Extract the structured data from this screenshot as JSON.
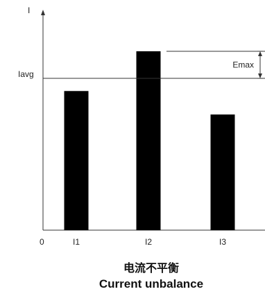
{
  "chart_data": {
    "type": "bar",
    "categories": [
      "I1",
      "I2",
      "I3"
    ],
    "values": [
      7.7,
      9.9,
      6.4
    ],
    "ylabel": "I",
    "origin_label": "0",
    "ylim": [
      0,
      12.2
    ],
    "grid": false,
    "reference_line": {
      "label": "Iavg",
      "value": 8.4
    },
    "annotation": {
      "label": "Emax",
      "from": 8.4,
      "to": 9.9
    },
    "bar_color": "#000000",
    "axis_color": "#333333",
    "title_cn": "电流不平衡",
    "title_en": "Current unbalance"
  }
}
